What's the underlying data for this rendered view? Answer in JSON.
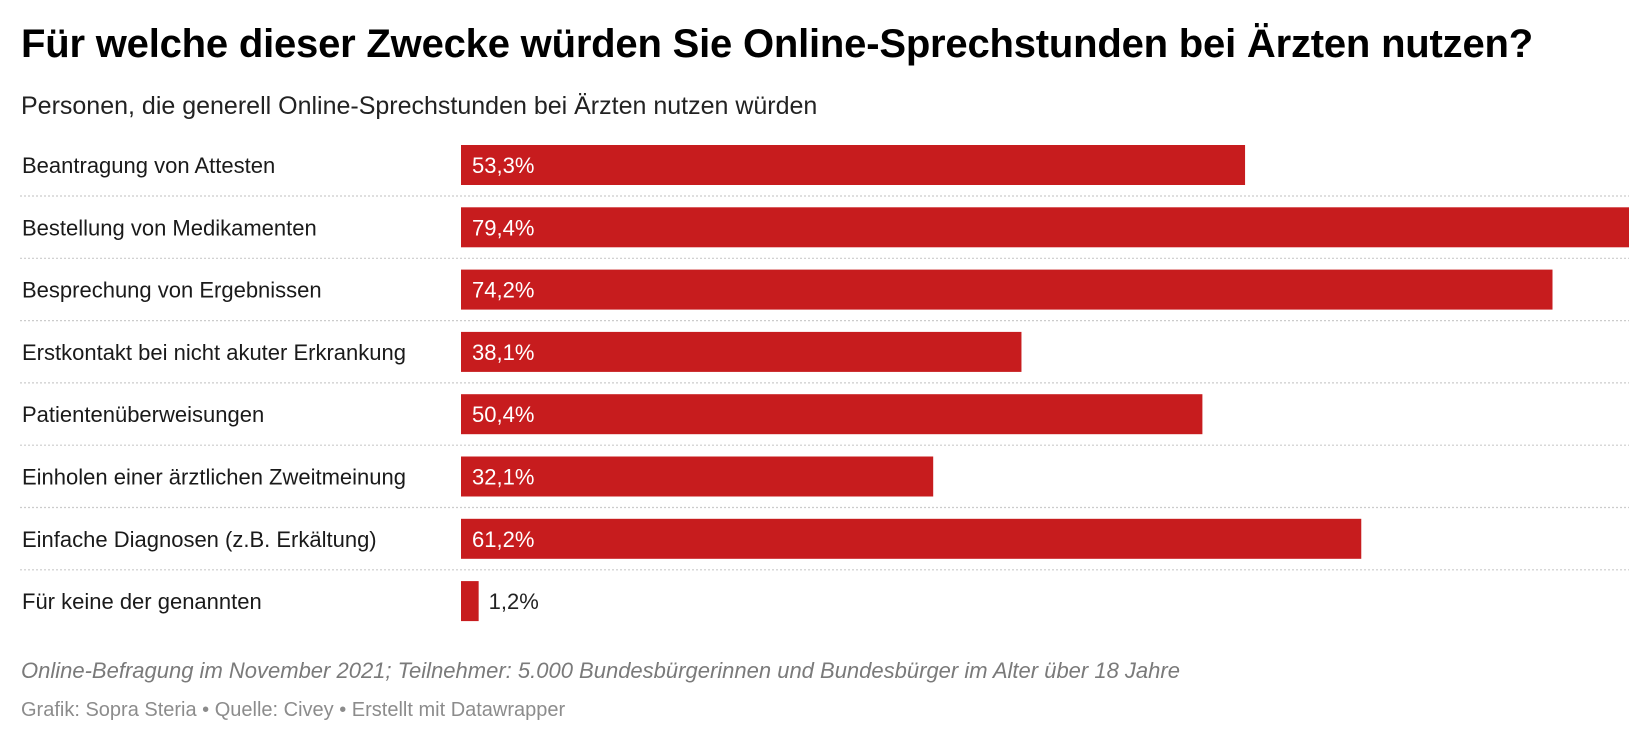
{
  "header": {
    "title": "Für welche dieser Zwecke würden Sie Online-Sprechstunden bei Ärzten nutzen?",
    "subtitle": "Personen, die generell Online-Sprechstunden bei Ärzten nutzen würden"
  },
  "footer": {
    "notes": "Online-Befragung im November 2021; Teilnehmer: 5.000 Bundesbürgerinnen und Bundesbürger im Alter über 18 Jahre",
    "credits": "Grafik: Sopra Steria • Quelle: Civey • Erstellt mit Datawrapper"
  },
  "colors": {
    "bar": "#c71c1e",
    "label_inside": "#ffffff",
    "label_outside": "#222222",
    "separator": "#cccccc"
  },
  "chart_data": {
    "type": "bar",
    "orientation": "horizontal",
    "title": "Für welche dieser Zwecke würden Sie Online-Sprechstunden bei Ärzten nutzen?",
    "subtitle": "Personen, die generell Online-Sprechstunden bei Ärzten nutzen würden",
    "unit": "%",
    "categories": [
      "Beantragung von Attesten",
      "Bestellung von Medikamenten",
      "Besprechung von Ergebnissen",
      "Erstkontakt bei nicht akuter Erkrankung",
      "Patientenüberweisungen",
      "Einholen einer ärztlichen Zweitmeinung",
      "Einfache Diagnosen (z.B. Erkältung)",
      "Für keine der genannten"
    ],
    "values": [
      53.3,
      79.4,
      74.2,
      38.1,
      50.4,
      32.1,
      61.2,
      1.2
    ],
    "value_labels": [
      "53,3%",
      "79,4%",
      "74,2%",
      "38,1%",
      "50,4%",
      "32,1%",
      "61,2%",
      "1,2%"
    ],
    "xlim": [
      0,
      79.4
    ],
    "grid": false,
    "legend": "none"
  }
}
